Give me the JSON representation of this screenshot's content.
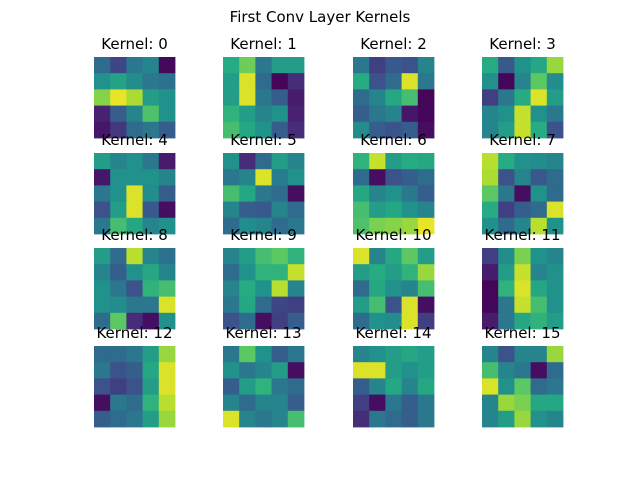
{
  "chart_data": {
    "type": "heatmap",
    "title": "First Conv Layer Kernels",
    "colormap": "viridis",
    "value_range": [
      0,
      1
    ],
    "kernels": [
      {
        "label": "Kernel: 0",
        "values": [
          [
            0.35,
            0.22,
            0.4,
            0.45,
            0.03
          ],
          [
            0.5,
            0.58,
            0.48,
            0.4,
            0.38
          ],
          [
            0.82,
            0.97,
            0.88,
            0.55,
            0.5
          ],
          [
            0.12,
            0.3,
            0.45,
            0.72,
            0.5
          ],
          [
            0.08,
            0.18,
            0.35,
            0.4,
            0.3
          ]
        ]
      },
      {
        "label": "Kernel: 1",
        "values": [
          [
            0.62,
            0.78,
            0.4,
            0.55,
            0.55
          ],
          [
            0.55,
            0.95,
            0.35,
            0.02,
            0.15
          ],
          [
            0.55,
            0.95,
            0.4,
            0.3,
            0.1
          ],
          [
            0.65,
            0.55,
            0.45,
            0.5,
            0.12
          ],
          [
            0.7,
            0.6,
            0.5,
            0.3,
            0.15
          ]
        ]
      },
      {
        "label": "Kernel: 2",
        "values": [
          [
            0.4,
            0.2,
            0.28,
            0.25,
            0.45
          ],
          [
            0.62,
            0.25,
            0.35,
            0.95,
            0.4
          ],
          [
            0.35,
            0.45,
            0.6,
            0.7,
            0.02
          ],
          [
            0.3,
            0.4,
            0.45,
            0.08,
            0.02
          ],
          [
            0.48,
            0.3,
            0.25,
            0.3,
            0.05
          ]
        ]
      },
      {
        "label": "Kernel: 3",
        "values": [
          [
            0.62,
            0.28,
            0.5,
            0.6,
            0.85
          ],
          [
            0.5,
            0.02,
            0.45,
            0.75,
            0.48
          ],
          [
            0.2,
            0.4,
            0.62,
            0.95,
            0.55
          ],
          [
            0.45,
            0.5,
            0.92,
            0.5,
            0.4
          ],
          [
            0.45,
            0.55,
            0.92,
            0.62,
            0.25
          ]
        ]
      },
      {
        "label": "Kernel: 4",
        "values": [
          [
            0.55,
            0.45,
            0.5,
            0.4,
            0.1
          ],
          [
            0.08,
            0.5,
            0.5,
            0.5,
            0.45
          ],
          [
            0.4,
            0.5,
            0.95,
            0.48,
            0.3
          ],
          [
            0.25,
            0.55,
            0.95,
            0.28,
            0.05
          ],
          [
            0.4,
            0.7,
            0.6,
            0.45,
            0.5
          ]
        ]
      },
      {
        "label": "Kernel: 5",
        "values": [
          [
            0.5,
            0.15,
            0.35,
            0.55,
            0.45
          ],
          [
            0.4,
            0.45,
            0.95,
            0.42,
            0.5
          ],
          [
            0.7,
            0.6,
            0.4,
            0.35,
            0.05
          ],
          [
            0.45,
            0.3,
            0.28,
            0.45,
            0.35
          ],
          [
            0.35,
            0.48,
            0.45,
            0.35,
            0.4
          ]
        ]
      },
      {
        "label": "Kernel: 6",
        "values": [
          [
            0.65,
            0.92,
            0.55,
            0.62,
            0.6
          ],
          [
            0.35,
            0.05,
            0.25,
            0.3,
            0.35
          ],
          [
            0.6,
            0.45,
            0.5,
            0.4,
            0.3
          ],
          [
            0.7,
            0.55,
            0.6,
            0.5,
            0.45
          ],
          [
            0.72,
            0.8,
            0.82,
            0.85,
            0.97
          ]
        ]
      },
      {
        "label": "Kernel: 7",
        "values": [
          [
            0.9,
            0.62,
            0.5,
            0.48,
            0.45
          ],
          [
            0.88,
            0.25,
            0.45,
            0.28,
            0.35
          ],
          [
            0.75,
            0.4,
            0.05,
            0.5,
            0.35
          ],
          [
            0.62,
            0.2,
            0.3,
            0.35,
            0.95
          ],
          [
            0.5,
            0.35,
            0.45,
            0.9,
            0.5
          ]
        ]
      },
      {
        "label": "Kernel: 8",
        "values": [
          [
            0.55,
            0.35,
            0.9,
            0.45,
            0.38
          ],
          [
            0.45,
            0.3,
            0.5,
            0.6,
            0.45
          ],
          [
            0.5,
            0.4,
            0.25,
            0.65,
            0.7
          ],
          [
            0.5,
            0.48,
            0.4,
            0.4,
            0.95
          ],
          [
            0.35,
            0.75,
            0.15,
            0.05,
            0.5
          ]
        ]
      },
      {
        "label": "Kernel: 9",
        "values": [
          [
            0.45,
            0.55,
            0.7,
            0.75,
            0.65
          ],
          [
            0.35,
            0.5,
            0.65,
            0.65,
            0.92
          ],
          [
            0.45,
            0.62,
            0.5,
            0.9,
            0.45
          ],
          [
            0.4,
            0.6,
            0.35,
            0.22,
            0.2
          ],
          [
            0.25,
            0.35,
            0.05,
            0.2,
            0.3
          ]
        ]
      },
      {
        "label": "Kernel: 10",
        "values": [
          [
            0.95,
            0.45,
            0.6,
            0.75,
            0.55
          ],
          [
            0.55,
            0.62,
            0.55,
            0.65,
            0.85
          ],
          [
            0.35,
            0.6,
            0.5,
            0.45,
            0.7
          ],
          [
            0.55,
            0.7,
            0.25,
            0.95,
            0.05
          ],
          [
            0.35,
            0.5,
            0.48,
            0.95,
            0.2
          ]
        ]
      },
      {
        "label": "Kernel: 11",
        "values": [
          [
            0.2,
            0.48,
            0.8,
            0.5,
            0.45
          ],
          [
            0.1,
            0.55,
            0.92,
            0.45,
            0.5
          ],
          [
            0.02,
            0.65,
            0.95,
            0.6,
            0.5
          ],
          [
            0.02,
            0.4,
            0.92,
            0.7,
            0.5
          ],
          [
            0.1,
            0.4,
            0.6,
            0.65,
            0.55
          ]
        ]
      },
      {
        "label": "Kernel: 12",
        "values": [
          [
            0.35,
            0.35,
            0.4,
            0.55,
            0.85
          ],
          [
            0.4,
            0.25,
            0.3,
            0.6,
            0.95
          ],
          [
            0.25,
            0.2,
            0.25,
            0.55,
            0.95
          ],
          [
            0.05,
            0.4,
            0.35,
            0.65,
            0.9
          ],
          [
            0.3,
            0.35,
            0.4,
            0.55,
            0.85
          ]
        ]
      },
      {
        "label": "Kernel: 13",
        "values": [
          [
            0.4,
            0.75,
            0.5,
            0.3,
            0.4
          ],
          [
            0.5,
            0.4,
            0.45,
            0.55,
            0.05
          ],
          [
            0.3,
            0.55,
            0.65,
            0.4,
            0.35
          ],
          [
            0.45,
            0.35,
            0.45,
            0.45,
            0.3
          ],
          [
            0.95,
            0.45,
            0.4,
            0.45,
            0.7
          ]
        ]
      },
      {
        "label": "Kernel: 14",
        "values": [
          [
            0.45,
            0.5,
            0.55,
            0.6,
            0.55
          ],
          [
            0.95,
            0.95,
            0.55,
            0.5,
            0.55
          ],
          [
            0.3,
            0.45,
            0.6,
            0.45,
            0.6
          ],
          [
            0.2,
            0.05,
            0.4,
            0.3,
            0.4
          ],
          [
            0.15,
            0.4,
            0.35,
            0.3,
            0.4
          ]
        ]
      },
      {
        "label": "Kernel: 15",
        "values": [
          [
            0.45,
            0.25,
            0.45,
            0.45,
            0.85
          ],
          [
            0.7,
            0.45,
            0.4,
            0.05,
            0.35
          ],
          [
            0.95,
            0.5,
            0.75,
            0.35,
            0.4
          ],
          [
            0.45,
            0.85,
            0.8,
            0.6,
            0.6
          ],
          [
            0.45,
            0.55,
            0.85,
            0.5,
            0.45
          ]
        ]
      }
    ]
  }
}
